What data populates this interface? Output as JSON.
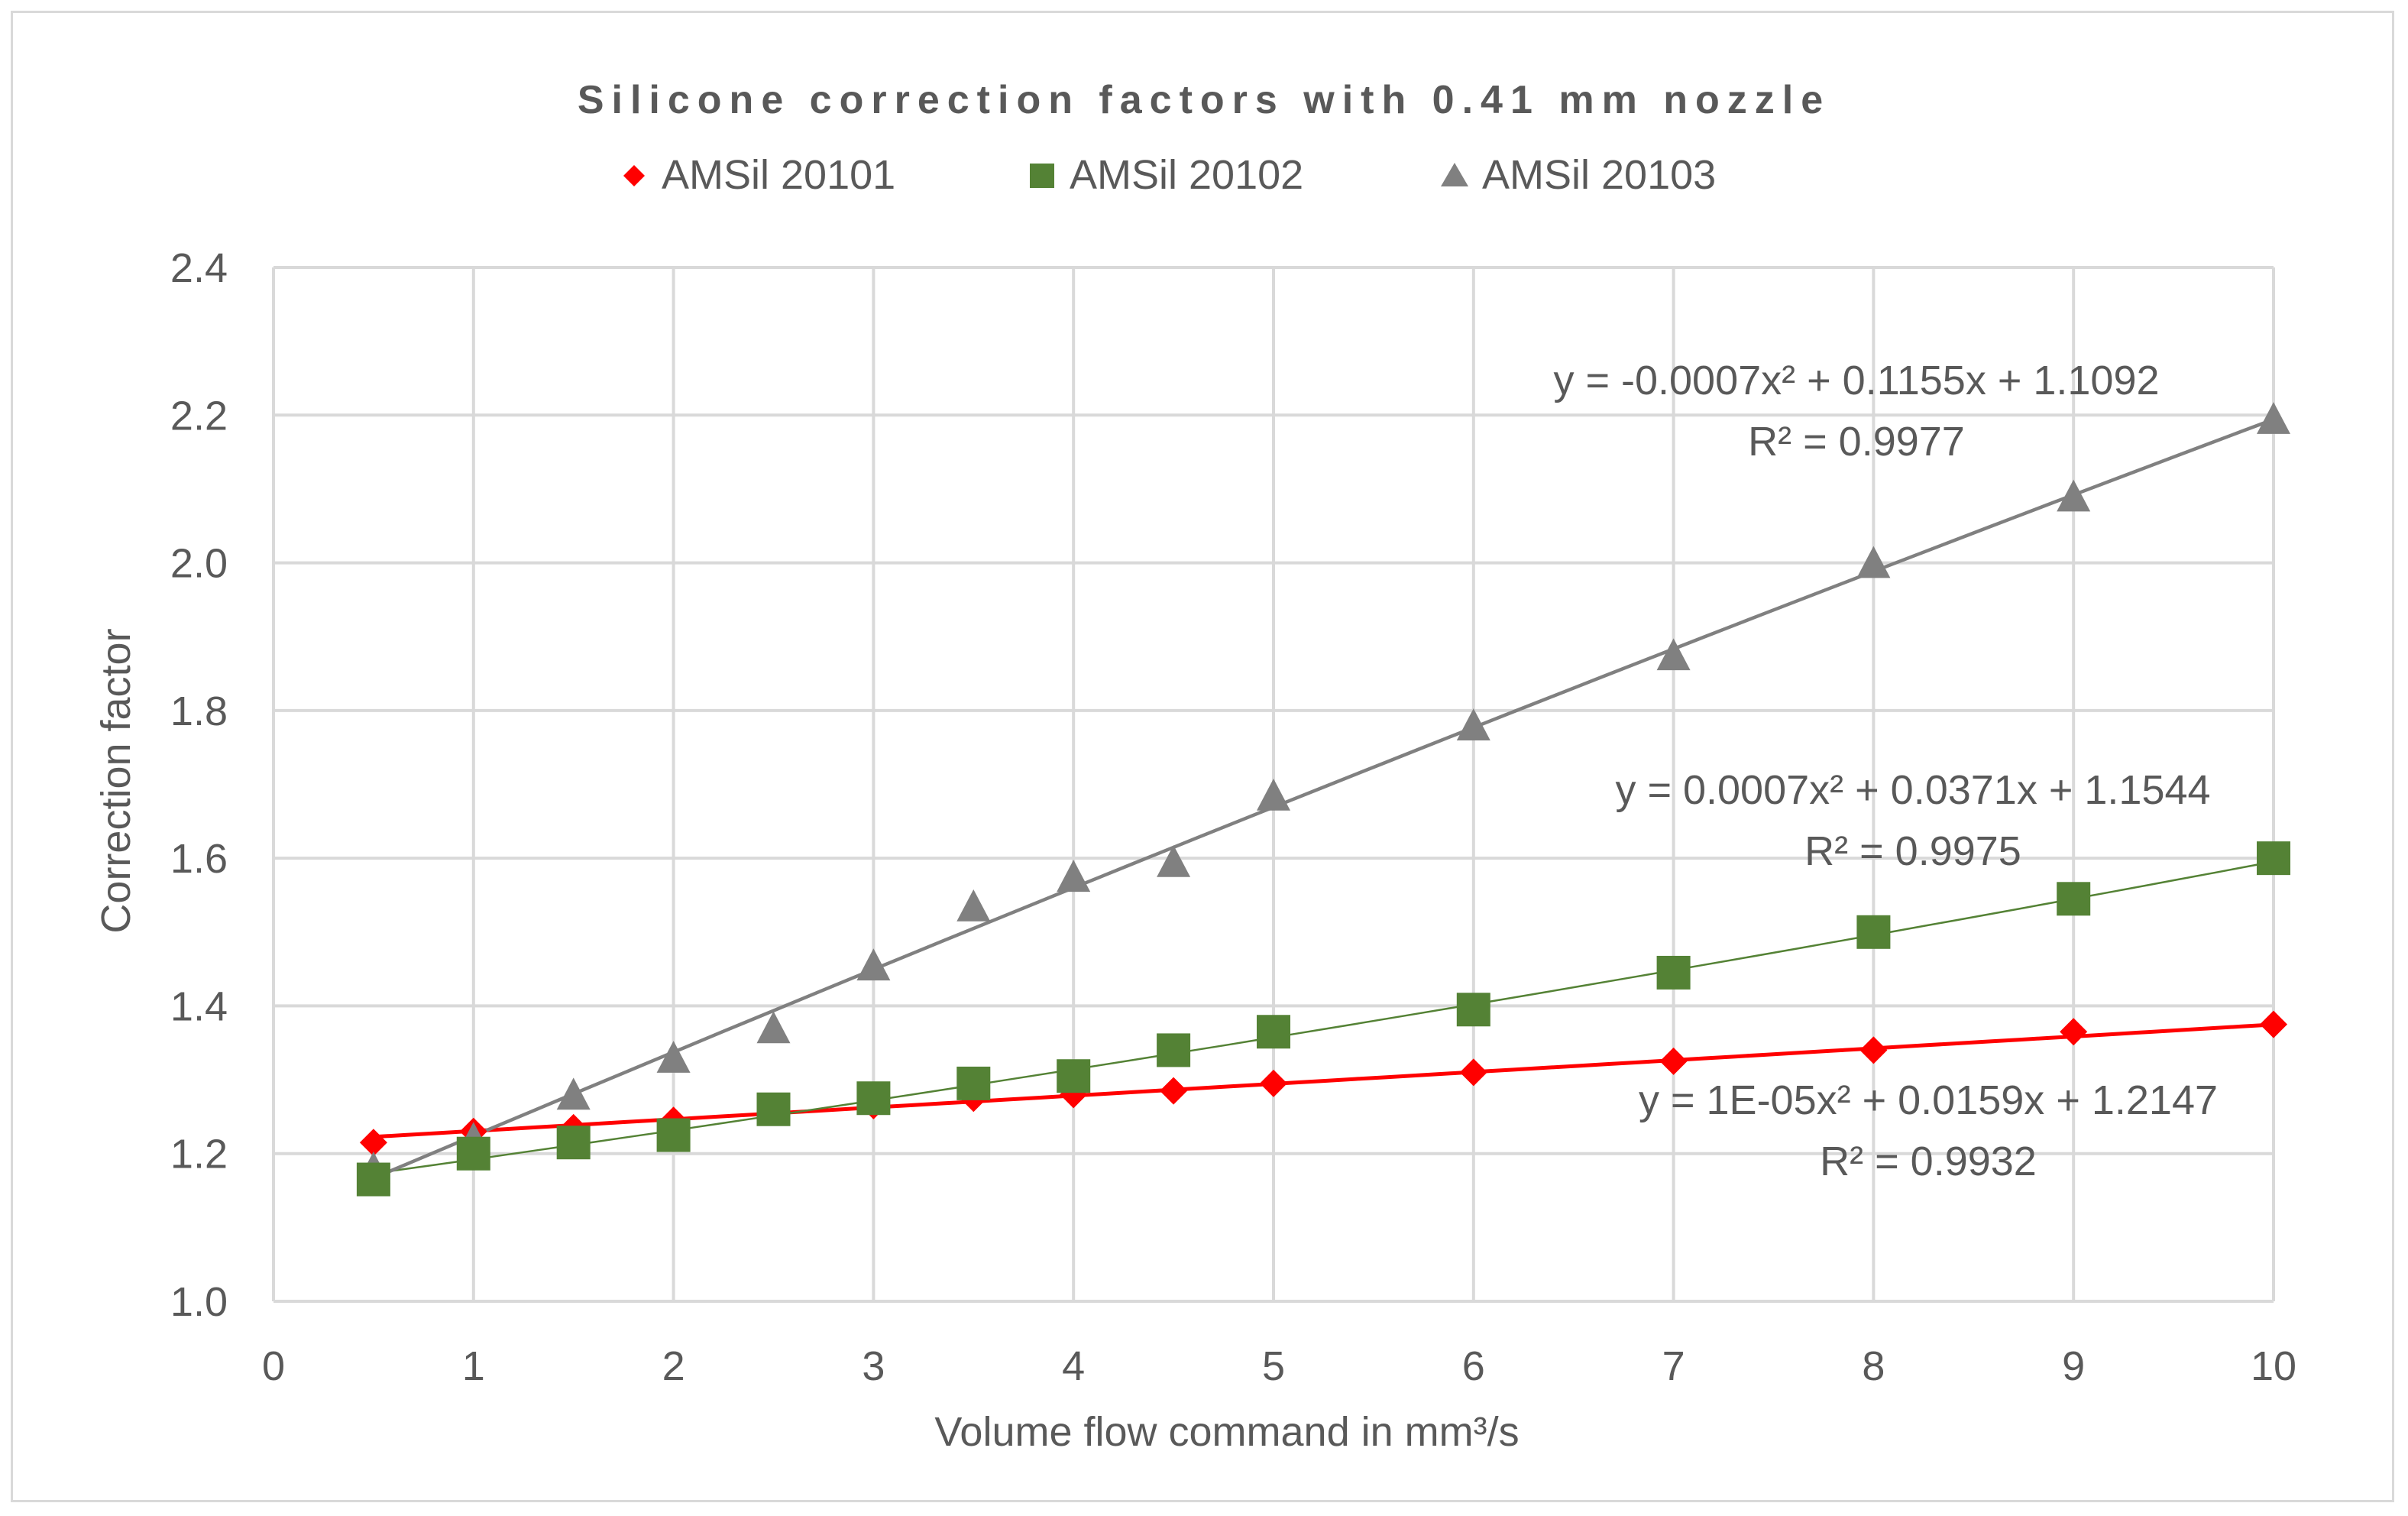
{
  "chart_data": {
    "type": "scatter",
    "title": "Silicone correction factors with 0.41 mm nozzle",
    "xlabel": "Volume flow command in mm³/s",
    "ylabel": "Correction factor",
    "xlim": [
      0,
      10
    ],
    "ylim": [
      1.0,
      2.4
    ],
    "x_ticks": [
      "0",
      "1",
      "2",
      "3",
      "4",
      "5",
      "6",
      "7",
      "8",
      "9",
      "10"
    ],
    "y_ticks": [
      "1.0",
      "1.2",
      "1.4",
      "1.6",
      "1.8",
      "2.0",
      "2.2",
      "2.4"
    ],
    "grid": true,
    "legend_position": "top",
    "x": [
      0.5,
      1,
      1.5,
      2,
      2.5,
      3,
      3.5,
      4,
      4.5,
      5,
      6,
      7,
      8,
      9,
      10
    ],
    "series": [
      {
        "name": "AMSil 20101",
        "marker": "diamond",
        "color": "#ff0000",
        "values": [
          1.215,
          1.23,
          1.235,
          1.245,
          1.26,
          1.265,
          1.275,
          1.28,
          1.285,
          1.295,
          1.31,
          1.325,
          1.34,
          1.365,
          1.375
        ],
        "trendline": {
          "coefficients": [
            1e-05,
            0.0159,
            1.2147
          ],
          "equation": "y = 1E-05x² + 0.0159x + 1.2147",
          "r2": "R² = 0.9932"
        }
      },
      {
        "name": "AMSil 20102",
        "marker": "square",
        "color": "#548235",
        "values": [
          1.165,
          1.2,
          1.215,
          1.225,
          1.26,
          1.275,
          1.295,
          1.305,
          1.34,
          1.365,
          1.395,
          1.445,
          1.5,
          1.545,
          1.6
        ],
        "trendline": {
          "coefficients": [
            0.0007,
            0.0371,
            1.1544
          ],
          "equation": "y = 0.0007x² + 0.0371x + 1.1544",
          "r2": "R² = 0.9975"
        }
      },
      {
        "name": "AMSil 20103",
        "marker": "triangle",
        "color": "#808080",
        "values": [
          1.18,
          1.22,
          1.28,
          1.33,
          1.37,
          1.455,
          1.535,
          1.575,
          1.595,
          1.685,
          1.78,
          1.875,
          2.0,
          2.09,
          2.195
        ],
        "trendline": {
          "coefficients": [
            -0.0007,
            0.1155,
            1.1092
          ],
          "equation": "y = -0.0007x² + 0.1155x + 1.1092",
          "r2": "R² = 0.9977"
        }
      }
    ]
  }
}
